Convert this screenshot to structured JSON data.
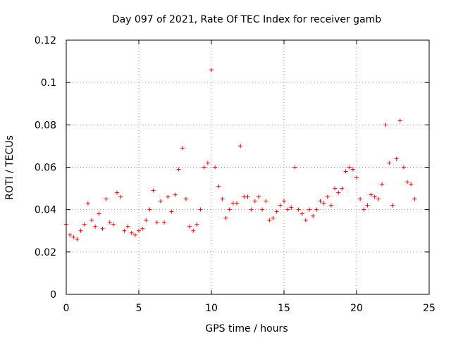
{
  "chart_data": {
    "type": "scatter",
    "title": "Day 097 of 2021, Rate Of TEC Index for receiver gamb",
    "xlabel": "GPS time / hours",
    "ylabel": "ROTI / TECUs",
    "xlim": [
      0,
      25
    ],
    "ylim": [
      0,
      0.12
    ],
    "xticks": [
      0,
      5,
      10,
      15,
      20,
      25
    ],
    "xtick_labels": [
      "0",
      "5",
      "10",
      "15",
      "20",
      "25"
    ],
    "yticks": [
      0,
      0.02,
      0.04,
      0.06,
      0.08,
      0.1,
      0.12
    ],
    "ytick_labels": [
      "0",
      "0.02",
      "0.04",
      "0.06",
      "0.08",
      "0.1",
      "0.12"
    ],
    "grid": true,
    "marker": "+",
    "color": "#ff0000",
    "series": [
      {
        "name": "ROTI",
        "x": [
          0.0,
          0.25,
          0.5,
          0.75,
          1.0,
          1.25,
          1.5,
          1.75,
          2.0,
          2.25,
          2.5,
          2.75,
          3.0,
          3.25,
          3.5,
          3.75,
          4.0,
          4.25,
          4.5,
          4.75,
          5.0,
          5.25,
          5.5,
          5.75,
          6.0,
          6.25,
          6.5,
          6.75,
          7.0,
          7.25,
          7.5,
          7.75,
          8.0,
          8.25,
          8.5,
          8.75,
          9.0,
          9.25,
          9.5,
          9.75,
          10.0,
          10.25,
          10.5,
          10.75,
          11.0,
          11.25,
          11.5,
          11.75,
          12.0,
          12.25,
          12.5,
          12.75,
          13.0,
          13.25,
          13.5,
          13.75,
          14.0,
          14.25,
          14.5,
          14.75,
          15.0,
          15.25,
          15.5,
          15.75,
          16.0,
          16.25,
          16.5,
          16.75,
          17.0,
          17.25,
          17.5,
          17.75,
          18.0,
          18.25,
          18.5,
          18.75,
          19.0,
          19.25,
          19.5,
          19.75,
          20.0,
          20.25,
          20.5,
          20.75,
          21.0,
          21.25,
          21.5,
          21.75,
          22.0,
          22.25,
          22.5,
          22.75,
          23.0,
          23.25,
          23.5,
          23.75,
          24.0
        ],
        "y": [
          0.033,
          0.028,
          0.027,
          0.026,
          0.03,
          0.033,
          0.043,
          0.035,
          0.032,
          0.038,
          0.031,
          0.045,
          0.034,
          0.033,
          0.048,
          0.046,
          0.03,
          0.032,
          0.029,
          0.028,
          0.03,
          0.031,
          0.035,
          0.04,
          0.049,
          0.034,
          0.044,
          0.034,
          0.046,
          0.039,
          0.047,
          0.059,
          0.069,
          0.045,
          0.032,
          0.03,
          0.033,
          0.04,
          0.06,
          0.062,
          0.106,
          0.06,
          0.051,
          0.045,
          0.036,
          0.04,
          0.043,
          0.043,
          0.07,
          0.046,
          0.046,
          0.04,
          0.044,
          0.046,
          0.04,
          0.044,
          0.035,
          0.036,
          0.039,
          0.042,
          0.044,
          0.04,
          0.041,
          0.06,
          0.04,
          0.038,
          0.035,
          0.04,
          0.037,
          0.04,
          0.044,
          0.043,
          0.046,
          0.042,
          0.05,
          0.048,
          0.05,
          0.058,
          0.06,
          0.059,
          0.055,
          0.045,
          0.04,
          0.042,
          0.047,
          0.046,
          0.045,
          0.052,
          0.08,
          0.062,
          0.042,
          0.064,
          0.082,
          0.06,
          0.053,
          0.052,
          0.045
        ]
      }
    ]
  }
}
